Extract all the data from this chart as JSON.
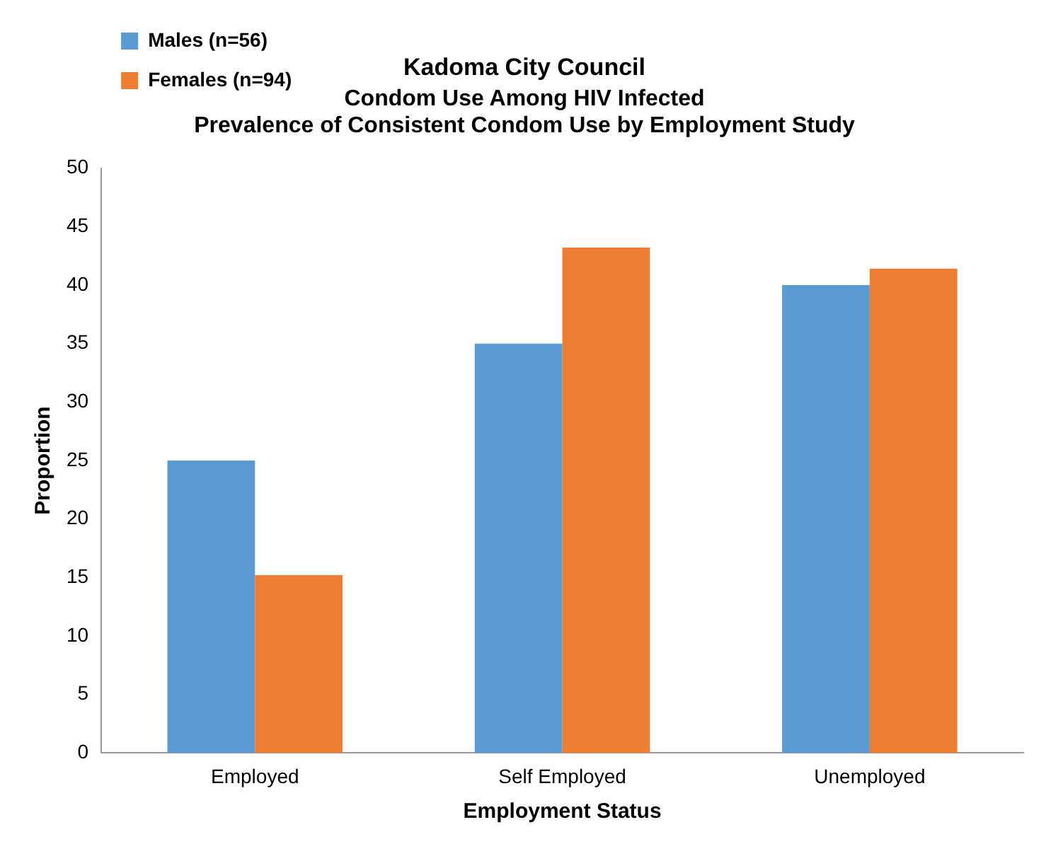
{
  "chart_data": {
    "type": "bar",
    "title": "Kadoma City Council",
    "subtitle": "Condom Use Among HIV Infected\nPrevalence of Consistent Condom Use by Employment Study",
    "xlabel": "Employment Status",
    "ylabel": "Proportion",
    "categories": [
      "Employed",
      "Self Employed",
      "Unemployed"
    ],
    "series": [
      {
        "name": "Males (n=56)",
        "color": "#5b9bd5",
        "values": [
          25,
          35,
          40
        ]
      },
      {
        "name": "Females (n=94)",
        "color": "#ed7d31",
        "values": [
          15.2,
          43.2,
          41.4
        ]
      }
    ],
    "ylim": [
      0,
      50
    ],
    "yticks": [
      0,
      5,
      10,
      15,
      20,
      25,
      30,
      35,
      40,
      45,
      50
    ],
    "grid": false,
    "legend": "top left"
  }
}
